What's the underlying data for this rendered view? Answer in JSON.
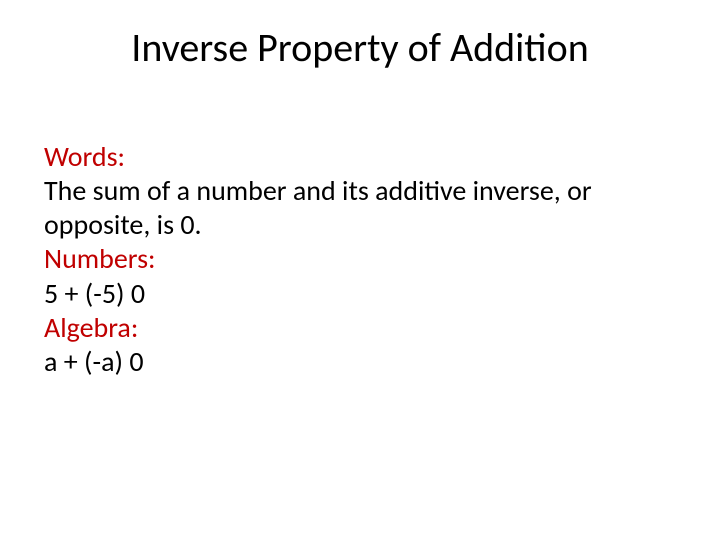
{
  "slide": {
    "title": "Inverse Property of Addition",
    "title_color": "#000000",
    "title_fontsize": 40,
    "body_fontsize": 28,
    "body_color": "#000000",
    "label_color": "#c00000",
    "background_color": "#ffffff",
    "sections": {
      "words": {
        "label": "Words:",
        "line1": "The sum of a number and its additive inverse, or",
        "line2": "opposite, is 0."
      },
      "numbers": {
        "label": "Numbers:",
        "example": "5 + (-5)  0"
      },
      "algebra": {
        "label": "Algebra:",
        "example": "a + (-a)  0"
      }
    }
  }
}
